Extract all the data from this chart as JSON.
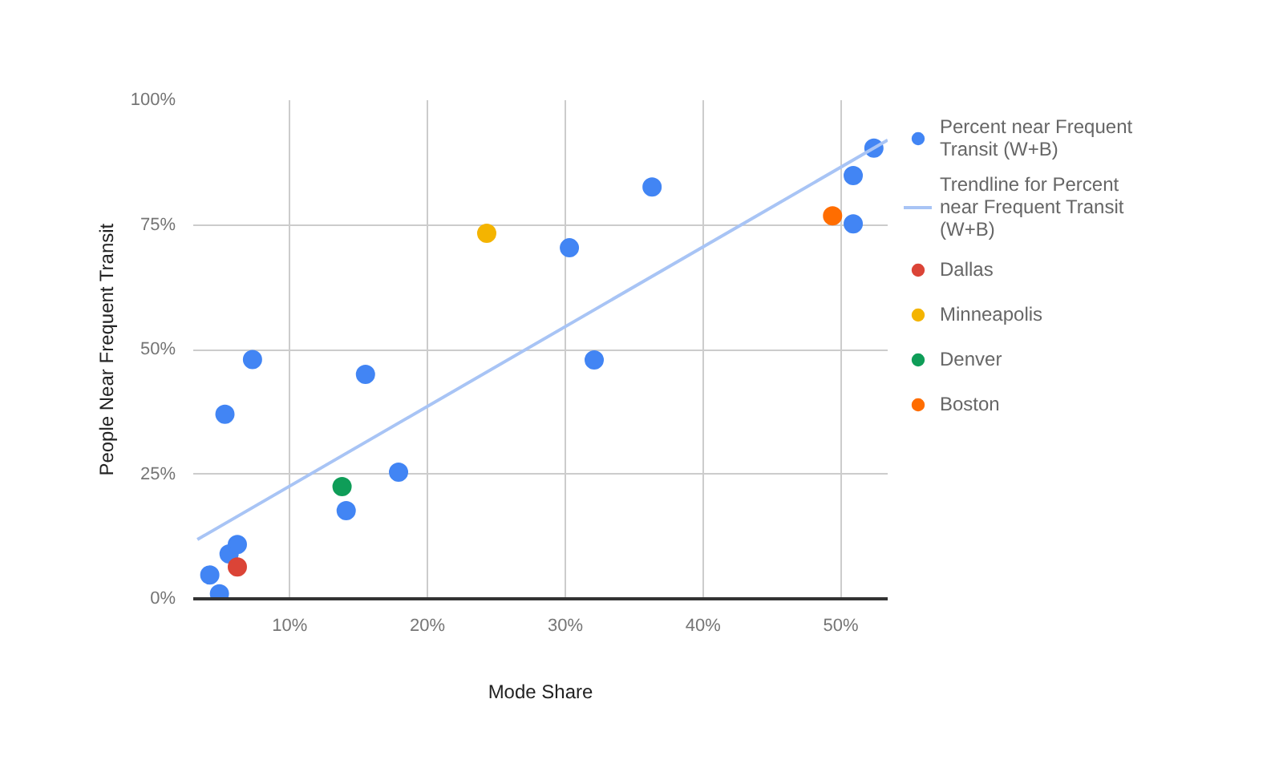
{
  "chart_data": {
    "type": "scatter",
    "xlabel": "Mode Share",
    "ylabel": "People Near Frequent Transit",
    "xlim": [
      3,
      53.4
    ],
    "ylim": [
      0,
      100
    ],
    "xticks": [
      {
        "value": 10,
        "label": "10%"
      },
      {
        "value": 20,
        "label": "20%"
      },
      {
        "value": 30,
        "label": "30%"
      },
      {
        "value": 40,
        "label": "40%"
      },
      {
        "value": 50,
        "label": "50%"
      }
    ],
    "yticks": [
      {
        "value": 0,
        "label": "0%"
      },
      {
        "value": 25,
        "label": "25%"
      },
      {
        "value": 50,
        "label": "50%"
      },
      {
        "value": 75,
        "label": "75%"
      },
      {
        "value": 100,
        "label": "100%"
      }
    ],
    "grid": true,
    "legend": "right",
    "marker": "circle",
    "series": [
      {
        "name": "Percent near Frequent Transit (W+B)",
        "color": "#4285f4",
        "x": [
          4.2,
          4.9,
          5.6,
          6.2,
          5.3,
          7.3,
          14.1,
          15.5,
          17.9,
          30.3,
          32.1,
          36.3,
          50.9,
          50.9,
          52.4
        ],
        "values": [
          4.8,
          1,
          9,
          10.9,
          37,
          48,
          17.7,
          45,
          25.4,
          70.4,
          47.9,
          82.6,
          75.2,
          84.9,
          90.4
        ]
      },
      {
        "name": "Trendline for Percent near Frequent Transit (W+B)",
        "type": "line",
        "color": "#a8c4f5",
        "marker": "none",
        "x": [
          3.3,
          53.4
        ],
        "values": [
          11.9,
          92
        ]
      },
      {
        "name": "Dallas",
        "color": "#db4437",
        "x": [
          6.2
        ],
        "values": [
          6.4
        ]
      },
      {
        "name": "Minneapolis",
        "color": "#f4b400",
        "x": [
          24.3
        ],
        "values": [
          73.3
        ]
      },
      {
        "name": "Denver",
        "color": "#0f9d58",
        "x": [
          13.8
        ],
        "values": [
          22.5
        ]
      },
      {
        "name": "Boston",
        "color": "#ff6d00",
        "x": [
          49.4
        ],
        "values": [
          76.8
        ]
      }
    ]
  }
}
